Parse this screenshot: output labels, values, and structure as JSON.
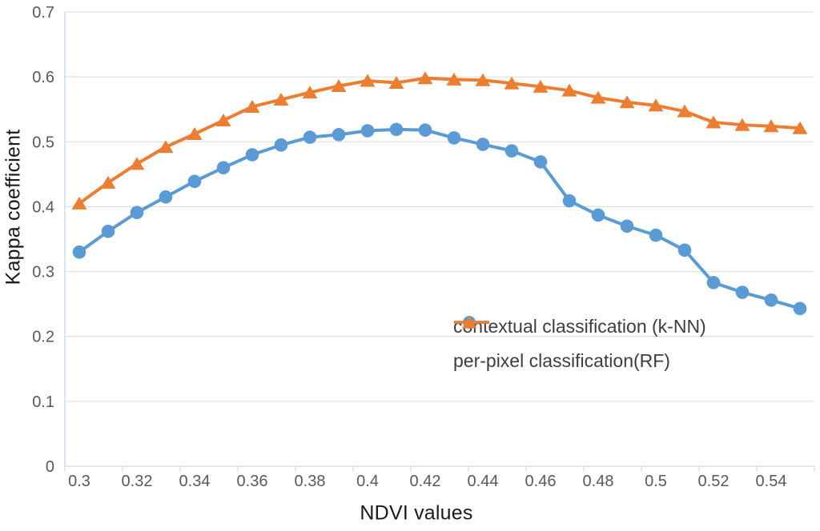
{
  "chart_data": {
    "type": "line",
    "title": "",
    "xlabel": "NDVI values",
    "ylabel": "Kappa coefficient",
    "x": [
      0.3,
      0.31,
      0.32,
      0.33,
      0.34,
      0.35,
      0.36,
      0.37,
      0.38,
      0.39,
      0.4,
      0.41,
      0.42,
      0.43,
      0.44,
      0.45,
      0.46,
      0.47,
      0.48,
      0.49,
      0.5,
      0.51,
      0.52,
      0.53,
      0.54,
      0.55
    ],
    "x_tick_labels": [
      "0.3",
      "0.32",
      "0.34",
      "0.36",
      "0.38",
      "0.4",
      "0.42",
      "0.44",
      "0.46",
      "0.48",
      "0.5",
      "0.52",
      "0.54"
    ],
    "x_label_every": 2,
    "y_tick_labels": [
      "0",
      "0.1",
      "0.2",
      "0.3",
      "0.4",
      "0.5",
      "0.6",
      "0.7"
    ],
    "y_ticks": [
      0,
      0.1,
      0.2,
      0.3,
      0.4,
      0.5,
      0.6,
      0.7
    ],
    "ylim": [
      0,
      0.7
    ],
    "grid": "horizontal",
    "legend_position": "inside-bottom-right",
    "series": [
      {
        "name": "contextual classification (k-NN)",
        "marker": "circle",
        "color": "#5B9BD5",
        "values": [
          0.33,
          0.362,
          0.391,
          0.415,
          0.439,
          0.46,
          0.48,
          0.495,
          0.507,
          0.511,
          0.517,
          0.519,
          0.518,
          0.506,
          0.496,
          0.486,
          0.469,
          0.409,
          0.387,
          0.37,
          0.356,
          0.333,
          0.283,
          0.268,
          0.256,
          0.243
        ]
      },
      {
        "name": "per-pixel classification(RF)",
        "marker": "triangle",
        "color": "#ED7D31",
        "values": [
          0.405,
          0.437,
          0.466,
          0.492,
          0.512,
          0.533,
          0.554,
          0.565,
          0.576,
          0.586,
          0.594,
          0.591,
          0.598,
          0.596,
          0.595,
          0.59,
          0.585,
          0.579,
          0.568,
          0.561,
          0.556,
          0.547,
          0.53,
          0.526,
          0.524,
          0.521
        ]
      }
    ],
    "colors": {
      "gridline": "#D9D9D9",
      "y_axis_line": "#BDD7EE",
      "x_axis_line": "#D9D9D9",
      "tick_label": "#595959",
      "axis_title": "#1a1a1a",
      "legend_text": "#3d3d3d",
      "background": "#ffffff"
    }
  }
}
